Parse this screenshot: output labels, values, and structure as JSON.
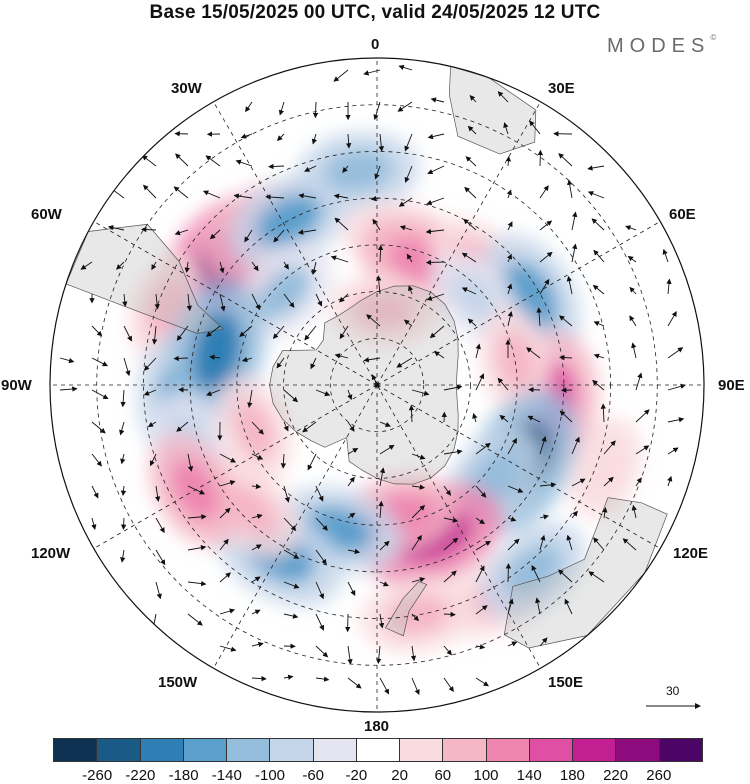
{
  "title": "Base 15/05/2025 00 UTC, valid 24/05/2025 12 UTC",
  "brand": "MODES",
  "brand_mark": "©",
  "meridian_labels": {
    "lon_0": "0",
    "lon_30e": "30E",
    "lon_60e": "60E",
    "lon_90e": "90E",
    "lon_120e": "120E",
    "lon_150e": "150E",
    "lon_180": "180",
    "lon_150w": "150W",
    "lon_120w": "120W",
    "lon_90w": "90W",
    "lon_60w": "60W",
    "lon_30w": "30W"
  },
  "reference_vector": {
    "label": "30"
  },
  "colorbar": {
    "colors": [
      "#0d3150",
      "#1a5a86",
      "#2f7fb5",
      "#5b9fcc",
      "#95bddc",
      "#c6d6ea",
      "#e5e5f1",
      "#ffffff",
      "#f9dcdf",
      "#f5b6c6",
      "#ee86b0",
      "#df4fa4",
      "#c11f92",
      "#8e0b7e",
      "#4c0567"
    ],
    "tick_labels": [
      "-260",
      "-220",
      "-180",
      "-140",
      "-100",
      "-60",
      "-20",
      "20",
      "60",
      "100",
      "140",
      "180",
      "220",
      "260"
    ]
  },
  "anomaly_cells": [
    {
      "lon": -52,
      "lat": -48,
      "v": 230
    },
    {
      "lon": -38,
      "lat": -48,
      "v": 120
    },
    {
      "lon": -70,
      "lat": -42,
      "v": 80
    },
    {
      "lon": -28,
      "lat": -50,
      "v": -140
    },
    {
      "lon": -5,
      "lat": -44,
      "v": -120
    },
    {
      "lon": -45,
      "lat": -62,
      "v": -100
    },
    {
      "lon": -95,
      "lat": -48,
      "v": -170
    },
    {
      "lon": -78,
      "lat": -55,
      "v": -190
    },
    {
      "lon": -108,
      "lat": -48,
      "v": -90
    },
    {
      "lon": 8,
      "lat": -58,
      "v": 90
    },
    {
      "lon": 20,
      "lat": -62,
      "v": 140
    },
    {
      "lon": 40,
      "lat": -56,
      "v": 90
    },
    {
      "lon": 5,
      "lat": -74,
      "v": 80
    },
    {
      "lon": 60,
      "lat": -52,
      "v": -160
    },
    {
      "lon": 48,
      "lat": -62,
      "v": -70
    },
    {
      "lon": 95,
      "lat": -52,
      "v": 170
    },
    {
      "lon": 80,
      "lat": -60,
      "v": 80
    },
    {
      "lon": 118,
      "lat": -55,
      "v": -220
    },
    {
      "lon": 130,
      "lat": -58,
      "v": -120
    },
    {
      "lon": 160,
      "lat": -56,
      "v": 200
    },
    {
      "lon": 170,
      "lat": -62,
      "v": 110
    },
    {
      "lon": 150,
      "lat": -38,
      "v": 90
    },
    {
      "lon": -165,
      "lat": -58,
      "v": -140
    },
    {
      "lon": -150,
      "lat": -48,
      "v": -170
    },
    {
      "lon": -135,
      "lat": -52,
      "v": 90
    },
    {
      "lon": -120,
      "lat": -45,
      "v": 120
    },
    {
      "lon": -110,
      "lat": -62,
      "v": 80
    },
    {
      "lon": 140,
      "lat": -38,
      "v": -110
    },
    {
      "lon": 110,
      "lat": -38,
      "v": 60
    },
    {
      "lon": 170,
      "lat": -40,
      "v": 100
    }
  ]
}
